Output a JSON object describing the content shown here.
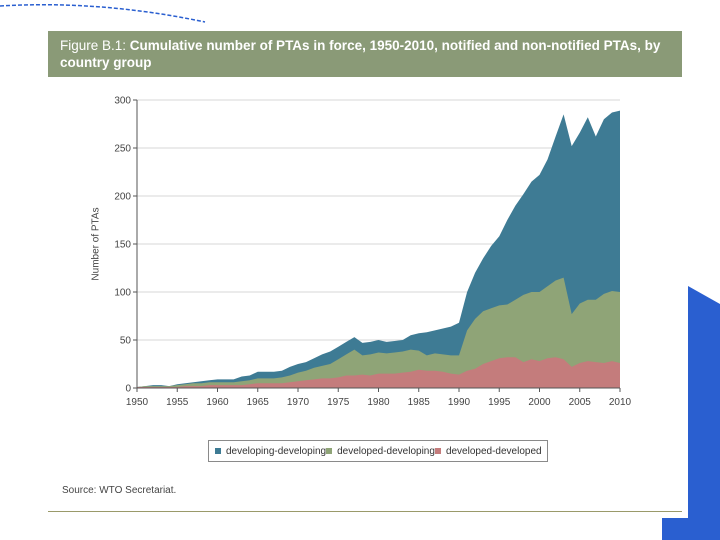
{
  "figure": {
    "title_prefix": "Figure B.1:",
    "title": "Cumulative number of PTAs in force, 1950-2010, notified and non-notified PTAs, by country group",
    "source": "Source: WTO Secretariat."
  },
  "colors": {
    "developing_developing": "#3e7b94",
    "developed_developing": "#8fa477",
    "developed_developed": "#c47c7c",
    "title_band": "#8a9a77",
    "accent_blue": "#2a5fd0"
  },
  "chart_data": {
    "type": "area",
    "stacked": true,
    "ylabel": "Number of PTAs",
    "xlabel": "",
    "ylim": [
      0,
      300
    ],
    "xlim": [
      1950,
      2010
    ],
    "yticks": [
      0,
      50,
      100,
      150,
      200,
      250,
      300
    ],
    "xticks": [
      1950,
      1955,
      1960,
      1965,
      1970,
      1975,
      1980,
      1985,
      1990,
      1995,
      2000,
      2005,
      2010
    ],
    "grid": true,
    "legend_position": "bottom",
    "x": [
      1950,
      1951,
      1952,
      1953,
      1954,
      1955,
      1956,
      1957,
      1958,
      1959,
      1960,
      1961,
      1962,
      1963,
      1964,
      1965,
      1966,
      1967,
      1968,
      1969,
      1970,
      1971,
      1972,
      1973,
      1974,
      1975,
      1976,
      1977,
      1978,
      1979,
      1980,
      1981,
      1982,
      1983,
      1984,
      1985,
      1986,
      1987,
      1988,
      1989,
      1990,
      1991,
      1992,
      1993,
      1994,
      1995,
      1996,
      1997,
      1998,
      1999,
      2000,
      2001,
      2002,
      2003,
      2004,
      2005,
      2006,
      2007,
      2008,
      2009,
      2010
    ],
    "series": [
      {
        "name": "developing-developing",
        "values": [
          0,
          0,
          1,
          1,
          0,
          1,
          1,
          1,
          2,
          2,
          3,
          3,
          3,
          5,
          5,
          7,
          7,
          7,
          7,
          9,
          9,
          9,
          10,
          12,
          12,
          12,
          13,
          13,
          13,
          13,
          13,
          12,
          12,
          12,
          15,
          18,
          24,
          24,
          27,
          30,
          34,
          40,
          48,
          55,
          65,
          72,
          88,
          98,
          103,
          115,
          122,
          132,
          150,
          170,
          175,
          178,
          190,
          170,
          182,
          186,
          189
        ],
        "total": [
          1,
          2,
          3,
          3,
          2,
          4,
          5,
          6,
          7,
          8,
          9,
          9,
          9,
          12,
          13,
          17,
          17,
          17,
          18,
          22,
          25,
          27,
          31,
          35,
          38,
          43,
          48,
          53,
          47,
          48,
          50,
          48,
          49,
          50,
          55,
          57,
          58,
          60,
          62,
          64,
          68,
          100,
          120,
          135,
          148,
          158,
          175,
          190,
          202,
          215,
          222,
          238,
          262,
          285,
          252,
          266,
          282,
          262,
          280,
          287,
          289
        ]
      },
      {
        "name": "developed-developing",
        "values": [
          0,
          1,
          1,
          1,
          1,
          2,
          2,
          3,
          3,
          3,
          3,
          3,
          3,
          4,
          4,
          5,
          5,
          5,
          6,
          7,
          9,
          10,
          12,
          13,
          15,
          19,
          22,
          27,
          20,
          22,
          22,
          21,
          22,
          22,
          23,
          20,
          16,
          18,
          18,
          19,
          20,
          42,
          52,
          55,
          55,
          55,
          55,
          60,
          70,
          70,
          72,
          75,
          80,
          85,
          55,
          62,
          64,
          65,
          72,
          73,
          74
        ],
        "total": [
          1,
          2,
          2,
          2,
          2,
          3,
          4,
          5,
          5,
          6,
          6,
          6,
          6,
          7,
          8,
          10,
          10,
          10,
          11,
          13,
          16,
          18,
          21,
          23,
          25,
          30,
          35,
          40,
          34,
          35,
          37,
          36,
          37,
          38,
          40,
          39,
          34,
          36,
          35,
          34,
          34,
          60,
          72,
          80,
          83,
          86,
          87,
          92,
          97,
          100,
          100,
          106,
          112,
          115,
          77,
          88,
          92,
          92,
          98,
          101,
          100
        ]
      },
      {
        "name": "developed-developed",
        "values": [
          1,
          1,
          1,
          1,
          1,
          1,
          2,
          2,
          2,
          3,
          3,
          3,
          3,
          3,
          4,
          5,
          5,
          5,
          5,
          6,
          7,
          8,
          9,
          10,
          10,
          11,
          13,
          13,
          14,
          13,
          15,
          15,
          15,
          16,
          17,
          19,
          18,
          18,
          17,
          15,
          14,
          18,
          20,
          25,
          28,
          31,
          32,
          32,
          27,
          30,
          28,
          31,
          32,
          30,
          22,
          26,
          28,
          27,
          26,
          28,
          26
        ],
        "total": [
          1,
          1,
          1,
          1,
          1,
          1,
          2,
          2,
          2,
          3,
          3,
          3,
          3,
          3,
          4,
          5,
          5,
          5,
          5,
          6,
          7,
          8,
          9,
          10,
          10,
          11,
          13,
          13,
          14,
          13,
          15,
          15,
          15,
          16,
          17,
          19,
          18,
          18,
          17,
          15,
          14,
          18,
          20,
          25,
          28,
          31,
          32,
          32,
          27,
          30,
          28,
          31,
          32,
          30,
          22,
          26,
          28,
          27,
          26,
          28,
          26
        ]
      }
    ]
  }
}
